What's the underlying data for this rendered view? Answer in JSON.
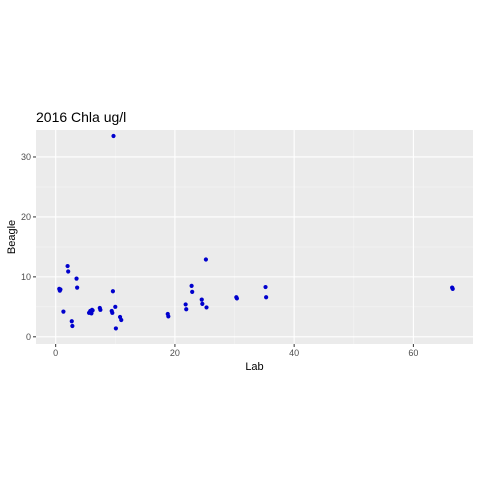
{
  "chart_data": {
    "type": "scatter",
    "title": "2016 Chla ug/l",
    "xlabel": "Lab",
    "ylabel": "Beagle",
    "xlim": [
      -3.3,
      70.0
    ],
    "ylim": [
      -1.2,
      34.5
    ],
    "x_ticks": [
      0,
      20,
      40,
      60
    ],
    "y_ticks": [
      0,
      10,
      20,
      30
    ],
    "x_tick_labels": [
      "0",
      "20",
      "40",
      "60"
    ],
    "y_tick_labels": [
      "0",
      "10",
      "20",
      "30"
    ],
    "grid": true,
    "legend": "none",
    "colors": {
      "panel_background": "#ebebeb",
      "grid_major": "#ffffff",
      "grid_minor": "#f5f5f5",
      "point": "#0000cd",
      "tick_label": "#4d4d4d",
      "tick_mark": "#333333"
    },
    "series": [
      {
        "x": [
          0.6,
          0.7,
          0.8,
          1.3,
          2.0,
          2.1,
          2.7,
          2.8,
          3.5,
          3.6,
          5.6,
          5.8,
          6.0,
          6.1,
          6.2,
          7.4,
          7.5,
          9.4,
          9.5,
          9.6,
          9.7,
          10.0,
          10.1,
          10.8,
          11.0,
          18.8,
          18.9,
          21.8,
          21.9,
          22.8,
          22.9,
          24.5,
          24.6,
          25.2,
          25.3,
          30.3,
          30.4,
          35.2,
          35.3,
          66.5,
          66.6
        ],
        "y": [
          8.0,
          7.7,
          7.9,
          4.2,
          11.8,
          10.9,
          2.6,
          1.8,
          9.7,
          8.2,
          4.0,
          4.3,
          3.9,
          4.5,
          4.4,
          4.8,
          4.5,
          4.3,
          4.0,
          7.6,
          33.5,
          5.0,
          1.4,
          3.3,
          2.8,
          3.8,
          3.4,
          5.4,
          4.6,
          8.5,
          7.5,
          6.2,
          5.5,
          12.9,
          4.9,
          6.6,
          6.4,
          8.3,
          6.6,
          8.2,
          8.0
        ]
      }
    ]
  }
}
